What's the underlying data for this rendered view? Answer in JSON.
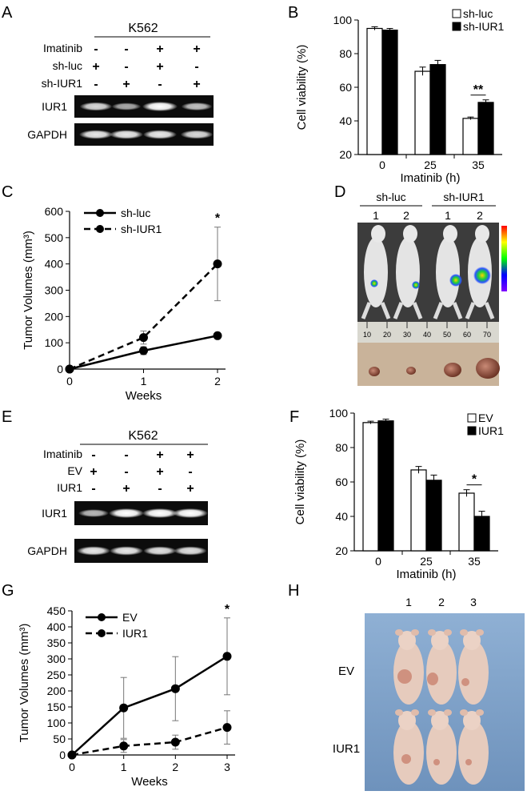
{
  "panels": {
    "A": {
      "letter": "A",
      "cell_line": "K562",
      "rows": [
        {
          "label": "Imatinib",
          "marks": [
            "-",
            "-",
            "+",
            "+"
          ]
        },
        {
          "label": "sh-luc",
          "marks": [
            "+",
            "-",
            "+",
            "-"
          ]
        },
        {
          "label": "sh-IUR1",
          "marks": [
            "-",
            "+",
            "-",
            "+"
          ]
        }
      ],
      "bands": [
        {
          "label": "IUR1",
          "intensity": [
            0.75,
            0.45,
            1.0,
            0.6
          ]
        },
        {
          "label": "GAPDH",
          "intensity": [
            0.85,
            0.85,
            0.85,
            0.75
          ]
        }
      ]
    },
    "B": {
      "letter": "B"
    },
    "C": {
      "letter": "C"
    },
    "D": {
      "letter": "D",
      "groups": [
        {
          "label": "sh-luc",
          "mice": [
            "1",
            "2"
          ]
        },
        {
          "label": "sh-IUR1",
          "mice": [
            "1",
            "2"
          ]
        }
      ],
      "ruler_ticks": [
        "10",
        "20",
        "30",
        "40",
        "50",
        "60",
        "70"
      ]
    },
    "E": {
      "letter": "E",
      "cell_line": "K562",
      "rows": [
        {
          "label": "Imatinib",
          "marks": [
            "-",
            "-",
            "+",
            "+"
          ]
        },
        {
          "label": "EV",
          "marks": [
            "+",
            "-",
            "+",
            "-"
          ]
        },
        {
          "label": "IUR1",
          "marks": [
            "-",
            "+",
            "-",
            "+"
          ]
        }
      ],
      "bands": [
        {
          "label": "IUR1",
          "intensity": [
            0.55,
            1.0,
            1.0,
            1.0
          ]
        },
        {
          "label": "GAPDH",
          "intensity": [
            0.85,
            0.85,
            0.8,
            0.8
          ]
        }
      ]
    },
    "F": {
      "letter": "F"
    },
    "G": {
      "letter": "G"
    },
    "H": {
      "letter": "H",
      "mice": [
        "1",
        "2",
        "3"
      ],
      "row_labels": [
        "EV",
        "IUR1"
      ]
    }
  },
  "chart_data": [
    {
      "id": "B",
      "type": "bar",
      "categories": [
        "0",
        "25",
        "35"
      ],
      "xlabel": "Imatinib (h)",
      "ylabel": "Cell viability (%)",
      "ylim": [
        20,
        100
      ],
      "yticks": [
        "20",
        "40",
        "60",
        "80",
        "100"
      ],
      "legend": "top-right",
      "series": [
        {
          "name": "sh-luc",
          "values": [
            95,
            69.5,
            41.5
          ],
          "errors": [
            1,
            2.5,
            0.8
          ],
          "color": "#ffffff"
        },
        {
          "name": "sh-IUR1",
          "values": [
            94,
            73.5,
            51
          ],
          "errors": [
            1,
            2.5,
            1.5
          ],
          "color": "#000000"
        }
      ],
      "annotations": [
        {
          "category": "35",
          "text": "**"
        }
      ]
    },
    {
      "id": "C",
      "type": "line",
      "x": [
        0,
        1,
        2
      ],
      "xticks": [
        "0",
        "1",
        "2"
      ],
      "xlabel": "Weeks",
      "ylabel": "Tumor Volumes (mm³)",
      "ylim": [
        0,
        600
      ],
      "yticks": [
        "0",
        "100",
        "200",
        "300",
        "400",
        "500",
        "600"
      ],
      "legend": "top-left",
      "series": [
        {
          "name": "sh-luc",
          "values": [
            0,
            70,
            127
          ],
          "errors": [
            0,
            15,
            10
          ],
          "dash": false
        },
        {
          "name": "sh-IUR1",
          "values": [
            0,
            120,
            400
          ],
          "errors": [
            0,
            25,
            140
          ],
          "dash": true
        }
      ],
      "annotations": [
        {
          "x": 2,
          "text": "*"
        }
      ]
    },
    {
      "id": "F",
      "type": "bar",
      "categories": [
        "0",
        "25",
        "35"
      ],
      "xlabel": "Imatinib (h)",
      "ylabel": "Cell viability (%)",
      "ylim": [
        20,
        100
      ],
      "yticks": [
        "20",
        "40",
        "60",
        "80",
        "100"
      ],
      "legend": "top-right",
      "series": [
        {
          "name": "EV",
          "values": [
            94.5,
            67,
            53.5
          ],
          "errors": [
            0.8,
            2,
            2
          ],
          "color": "#ffffff"
        },
        {
          "name": "IUR1",
          "values": [
            95.5,
            61,
            40
          ],
          "errors": [
            1,
            3,
            3
          ],
          "color": "#000000"
        }
      ],
      "annotations": [
        {
          "category": "35",
          "text": "*"
        }
      ]
    },
    {
      "id": "G",
      "type": "line",
      "x": [
        0,
        1,
        2,
        3
      ],
      "xticks": [
        "0",
        "1",
        "2",
        "3"
      ],
      "xlabel": "Weeks",
      "ylabel": "Tumor Volumes (mm³)",
      "ylim": [
        0,
        450
      ],
      "yticks": [
        "0",
        "50",
        "100",
        "150",
        "200",
        "250",
        "300",
        "350",
        "400",
        "450"
      ],
      "legend": "top-left",
      "series": [
        {
          "name": "EV",
          "values": [
            0,
            147,
            207,
            308
          ],
          "errors": [
            0,
            95,
            100,
            120
          ],
          "dash": false
        },
        {
          "name": "IUR1",
          "values": [
            0,
            28,
            40,
            86
          ],
          "errors": [
            0,
            20,
            22,
            52
          ],
          "dash": true
        }
      ],
      "annotations": [
        {
          "x": 3,
          "text": "*"
        }
      ]
    }
  ]
}
